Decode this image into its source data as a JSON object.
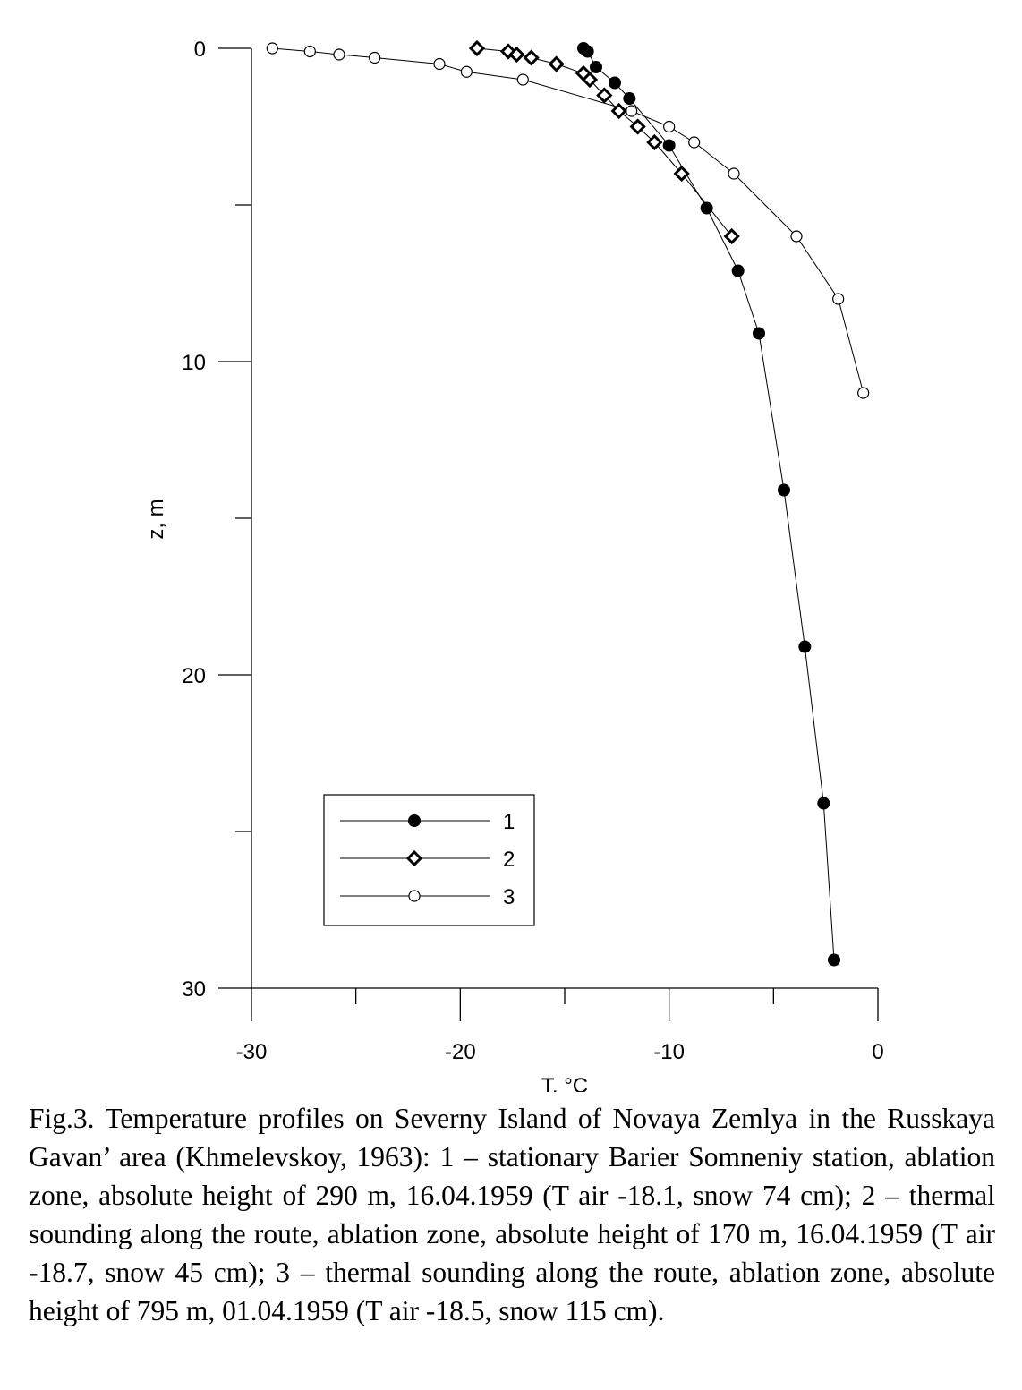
{
  "chart_data": {
    "type": "line",
    "title": "",
    "xlabel": "T, °C",
    "ylabel": "z, m",
    "xlim": [
      -30,
      0
    ],
    "ylim": [
      0,
      30
    ],
    "y_inverted": true,
    "x_ticks": [
      -30,
      -20,
      -10,
      0
    ],
    "x_tick_labels": [
      "-30",
      "-20",
      "-10",
      "0"
    ],
    "x_minor_ticks": [
      -25,
      -15,
      -5
    ],
    "y_ticks": [
      0,
      10,
      20,
      30
    ],
    "y_tick_labels": [
      "0",
      "10",
      "20",
      "30"
    ],
    "y_minor_ticks": [
      5,
      15,
      25
    ],
    "grid": false,
    "legend_position": "bottom-left",
    "series": [
      {
        "name": "1",
        "marker": "filled-circle",
        "x": [
          -14.1,
          -13.9,
          -13.5,
          -12.6,
          -11.9,
          -10.0,
          -8.2,
          -6.7,
          -5.7,
          -4.5,
          -3.5,
          -2.6,
          -2.1
        ],
        "y": [
          0.0,
          0.1,
          0.6,
          1.1,
          1.6,
          3.1,
          5.1,
          7.1,
          9.1,
          14.1,
          19.1,
          24.1,
          29.1
        ]
      },
      {
        "name": "2",
        "marker": "diamond",
        "x": [
          -19.2,
          -17.7,
          -17.3,
          -16.6,
          -15.4,
          -14.1,
          -13.8,
          -13.1,
          -12.4,
          -11.5,
          -10.7,
          -9.4,
          -7.0
        ],
        "y": [
          0.0,
          0.1,
          0.2,
          0.3,
          0.5,
          0.8,
          1.0,
          1.5,
          2.0,
          2.5,
          3.0,
          4.0,
          6.0
        ]
      },
      {
        "name": "3",
        "marker": "open-circle",
        "x": [
          -29.0,
          -27.2,
          -25.8,
          -24.1,
          -21.0,
          -19.7,
          -17.0,
          -11.8,
          -10.0,
          -8.8,
          -6.9,
          -3.9,
          -1.9,
          -0.7
        ],
        "y": [
          0.0,
          0.1,
          0.2,
          0.3,
          0.5,
          0.75,
          1.0,
          2.0,
          2.5,
          3.0,
          4.0,
          6.0,
          8.0,
          11.0
        ]
      }
    ]
  },
  "caption": "Fig.3. Temperature profiles on Severny Island of Novaya Zemlya in the Russkaya Gavan’ area (Khmelevskoy, 1963): 1 – stationary Barier Somneniy station, ablation zone, absolute height of 290 m, 16.04.1959 (T air -18.1, snow 74 cm); 2 – thermal sounding along the route, ablation zone, absolute height of 170 m, 16.04.1959 (T air -18.7, snow 45 cm); 3 – thermal sounding along the route, ablation zone, absolute height of 795 m, 01.04.1959 (T air -18.5, snow 115 cm)."
}
